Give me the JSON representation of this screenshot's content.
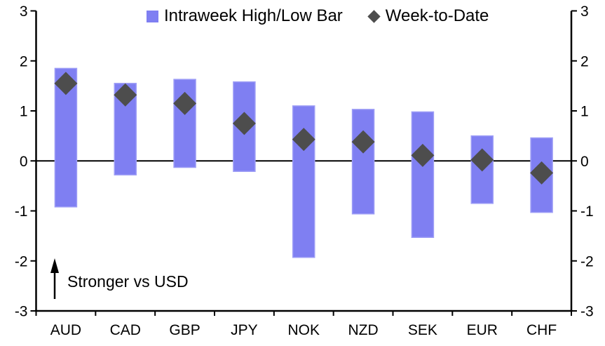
{
  "chart_data": {
    "type": "bar",
    "subtype": "range-bar-with-point-markers",
    "title": "",
    "xlabel": "",
    "ylabel": "",
    "categories": [
      "AUD",
      "CAD",
      "GBP",
      "JPY",
      "NOK",
      "NZD",
      "SEK",
      "EUR",
      "CHF"
    ],
    "series": [
      {
        "name": "Intraweek High/Low Bar",
        "type": "range-bar",
        "high": [
          1.85,
          1.55,
          1.63,
          1.58,
          1.1,
          1.03,
          0.98,
          0.5,
          0.46
        ],
        "low": [
          -0.92,
          -0.28,
          -0.13,
          -0.21,
          -1.93,
          -1.06,
          -1.53,
          -0.85,
          -1.03
        ]
      },
      {
        "name": "Week-to-Date",
        "type": "scatter-diamond",
        "values": [
          1.55,
          1.32,
          1.15,
          0.75,
          0.43,
          0.38,
          0.11,
          0.02,
          -0.24
        ]
      }
    ],
    "ylim": [
      -3,
      3
    ],
    "yticks": [
      -3,
      -2,
      -1,
      0,
      1,
      2,
      3
    ],
    "ytick_labels": [
      "-3",
      "-2",
      "-1",
      "0",
      "1",
      "2",
      "3"
    ],
    "y_axis_sides": [
      "left",
      "right"
    ],
    "zero_line": true,
    "grid": false,
    "legend_position": "top-center",
    "annotation": {
      "text": "Stronger vs USD",
      "arrow_direction": "up"
    }
  },
  "legend": {
    "bar_label": "Intraweek High/Low Bar",
    "diamond_label": "Week-to-Date"
  },
  "annotation": {
    "text": "Stronger vs USD"
  },
  "colors": {
    "bar_fill": "#7f7ff2",
    "bar_edge": "#9d9df6",
    "diamond": "#4d4d4d",
    "axis": "#000000",
    "background": "#ffffff"
  }
}
